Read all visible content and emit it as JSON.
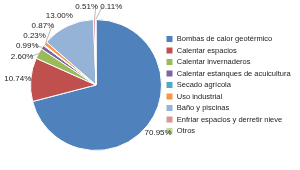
{
  "chart_data": {
    "type": "pie",
    "categories": [
      "Bombas de calor geotérmico",
      "Calentar espacios",
      "Calentar invernaderos",
      "Calentar estanques de acuicultura",
      "Secado agrícola",
      "Uso industrial",
      "Baño y piscinas",
      "Enfriar espacios y derretir nieve",
      "Otros"
    ],
    "values": [
      70.95,
      10.74,
      2.6,
      0.99,
      0.23,
      0.87,
      13.0,
      0.51,
      0.11
    ],
    "value_labels": [
      "70.95%",
      "10.74%",
      "2.60%",
      "0.99%",
      "0.23%",
      "0.87%",
      "13.00%",
      "0.51%",
      "0.11%"
    ],
    "colors": [
      "#4F81BD",
      "#C0504D",
      "#9BBB59",
      "#8064A2",
      "#4BACC6",
      "#F79646",
      "#95B3D7",
      "#D99694",
      "#C3D69B"
    ],
    "data_labels": true,
    "legend": "right"
  }
}
